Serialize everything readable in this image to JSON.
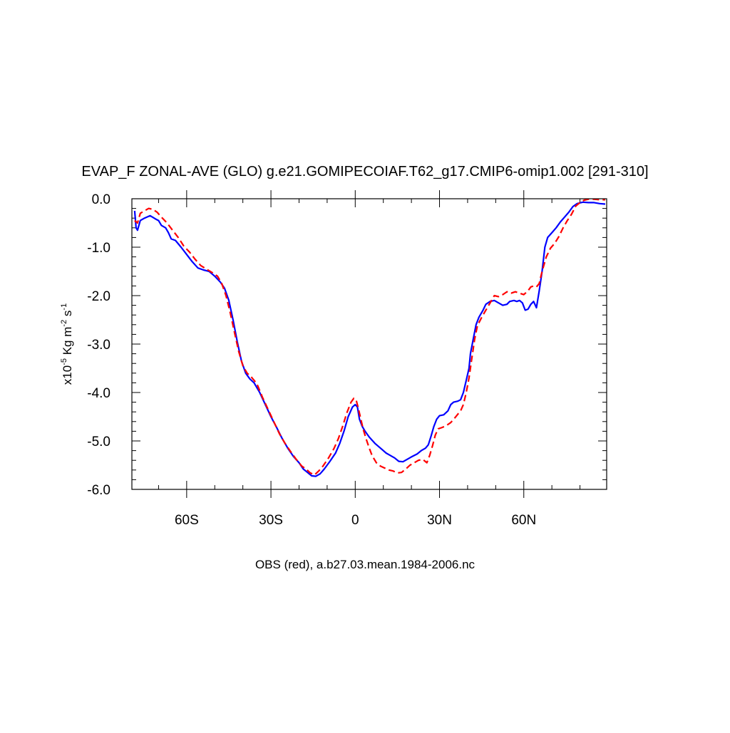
{
  "chart_data": {
    "type": "line",
    "title": "EVAP_F ZONAL-AVE (GLO) g.e21.GOMIPECOIAF.T62_g17.CMIP6-omip1.002 [291-310]",
    "xlabel": "OBS (red), a.b27.03.mean.1984-2006.nc",
    "ylabel": {
      "prefix": "x10",
      "exp1": "-5",
      "unit1": " Kg m",
      "exp2": "-2",
      "unit2": " s",
      "exp3": "-1"
    },
    "xlim": [
      -79.5,
      89.5
    ],
    "ylim": [
      -6.0,
      0.0
    ],
    "x_ticks": [
      {
        "value": -60,
        "label": "60S"
      },
      {
        "value": -30,
        "label": "30S"
      },
      {
        "value": 0,
        "label": "0"
      },
      {
        "value": 30,
        "label": "30N"
      },
      {
        "value": 60,
        "label": "60N"
      }
    ],
    "y_ticks": [
      {
        "value": 0.0,
        "label": "0.0"
      },
      {
        "value": -1.0,
        "label": "-1.0"
      },
      {
        "value": -2.0,
        "label": "-2.0"
      },
      {
        "value": -3.0,
        "label": "-3.0"
      },
      {
        "value": -4.0,
        "label": "-4.0"
      },
      {
        "value": -5.0,
        "label": "-5.0"
      },
      {
        "value": -6.0,
        "label": "-6.0"
      }
    ],
    "grid": false,
    "series": [
      {
        "color": "#0000ff",
        "dash": "solid",
        "points": [
          [
            -78.5,
            -0.25
          ],
          [
            -78.0,
            -0.6
          ],
          [
            -77.5,
            -0.65
          ],
          [
            -76.5,
            -0.45
          ],
          [
            -75.0,
            -0.4
          ],
          [
            -73.0,
            -0.35
          ],
          [
            -71.0,
            -0.42
          ],
          [
            -70.0,
            -0.45
          ],
          [
            -69.0,
            -0.55
          ],
          [
            -67.5,
            -0.6
          ],
          [
            -66.5,
            -0.7
          ],
          [
            -65.5,
            -0.83
          ],
          [
            -64.0,
            -0.86
          ],
          [
            -62.0,
            -1.0
          ],
          [
            -60.0,
            -1.15
          ],
          [
            -58.0,
            -1.3
          ],
          [
            -56.0,
            -1.43
          ],
          [
            -54.0,
            -1.47
          ],
          [
            -52.0,
            -1.5
          ],
          [
            -50.0,
            -1.6
          ],
          [
            -48.0,
            -1.72
          ],
          [
            -46.5,
            -1.85
          ],
          [
            -45.0,
            -2.1
          ],
          [
            -43.5,
            -2.5
          ],
          [
            -42.0,
            -2.95
          ],
          [
            -40.5,
            -3.35
          ],
          [
            -39.0,
            -3.6
          ],
          [
            -37.5,
            -3.72
          ],
          [
            -36.0,
            -3.8
          ],
          [
            -34.0,
            -4.0
          ],
          [
            -32.0,
            -4.25
          ],
          [
            -30.0,
            -4.5
          ],
          [
            -28.0,
            -4.72
          ],
          [
            -26.0,
            -4.95
          ],
          [
            -24.0,
            -5.15
          ],
          [
            -22.0,
            -5.32
          ],
          [
            -20.0,
            -5.45
          ],
          [
            -18.5,
            -5.58
          ],
          [
            -17.0,
            -5.65
          ],
          [
            -15.5,
            -5.72
          ],
          [
            -14.0,
            -5.73
          ],
          [
            -12.5,
            -5.68
          ],
          [
            -11.0,
            -5.58
          ],
          [
            -9.0,
            -5.42
          ],
          [
            -7.0,
            -5.25
          ],
          [
            -5.5,
            -5.05
          ],
          [
            -4.0,
            -4.8
          ],
          [
            -2.5,
            -4.5
          ],
          [
            -1.0,
            -4.3
          ],
          [
            0.0,
            -4.25
          ],
          [
            0.8,
            -4.3
          ],
          [
            1.5,
            -4.55
          ],
          [
            2.5,
            -4.7
          ],
          [
            3.5,
            -4.8
          ],
          [
            5.0,
            -4.92
          ],
          [
            7.0,
            -5.05
          ],
          [
            9.0,
            -5.15
          ],
          [
            11.0,
            -5.25
          ],
          [
            12.5,
            -5.3
          ],
          [
            14.0,
            -5.35
          ],
          [
            15.5,
            -5.42
          ],
          [
            17.0,
            -5.43
          ],
          [
            18.5,
            -5.38
          ],
          [
            20.0,
            -5.33
          ],
          [
            22.0,
            -5.27
          ],
          [
            23.5,
            -5.2
          ],
          [
            25.0,
            -5.15
          ],
          [
            26.0,
            -5.08
          ],
          [
            27.0,
            -4.9
          ],
          [
            28.0,
            -4.7
          ],
          [
            29.0,
            -4.55
          ],
          [
            30.0,
            -4.48
          ],
          [
            31.5,
            -4.46
          ],
          [
            33.0,
            -4.38
          ],
          [
            34.0,
            -4.25
          ],
          [
            35.0,
            -4.2
          ],
          [
            36.5,
            -4.18
          ],
          [
            37.5,
            -4.15
          ],
          [
            38.5,
            -4.0
          ],
          [
            39.5,
            -3.75
          ],
          [
            40.5,
            -3.5
          ],
          [
            41.0,
            -3.2
          ],
          [
            42.0,
            -2.9
          ],
          [
            43.0,
            -2.6
          ],
          [
            44.0,
            -2.45
          ],
          [
            45.5,
            -2.3
          ],
          [
            46.5,
            -2.18
          ],
          [
            48.0,
            -2.12
          ],
          [
            49.5,
            -2.1
          ],
          [
            51.0,
            -2.15
          ],
          [
            52.5,
            -2.2
          ],
          [
            54.0,
            -2.18
          ],
          [
            55.0,
            -2.12
          ],
          [
            56.5,
            -2.1
          ],
          [
            57.5,
            -2.12
          ],
          [
            58.5,
            -2.1
          ],
          [
            59.5,
            -2.15
          ],
          [
            60.5,
            -2.3
          ],
          [
            61.5,
            -2.28
          ],
          [
            62.5,
            -2.18
          ],
          [
            63.5,
            -2.12
          ],
          [
            64.5,
            -2.25
          ],
          [
            65.5,
            -1.9
          ],
          [
            66.5,
            -1.5
          ],
          [
            67.5,
            -1.0
          ],
          [
            68.5,
            -0.8
          ],
          [
            70.0,
            -0.7
          ],
          [
            71.5,
            -0.6
          ],
          [
            73.0,
            -0.48
          ],
          [
            74.5,
            -0.38
          ],
          [
            76.0,
            -0.28
          ],
          [
            77.5,
            -0.16
          ],
          [
            79.0,
            -0.1
          ],
          [
            81.0,
            -0.07
          ],
          [
            83.0,
            -0.08
          ],
          [
            85.0,
            -0.08
          ],
          [
            87.0,
            -0.1
          ],
          [
            89.0,
            -0.11
          ]
        ]
      },
      {
        "color": "#ff0000",
        "dash": "dashed",
        "points": [
          [
            -78.5,
            -0.45
          ],
          [
            -77.5,
            -0.5
          ],
          [
            -76.5,
            -0.3
          ],
          [
            -75.0,
            -0.25
          ],
          [
            -73.5,
            -0.2
          ],
          [
            -72.0,
            -0.22
          ],
          [
            -70.5,
            -0.28
          ],
          [
            -69.0,
            -0.38
          ],
          [
            -67.0,
            -0.5
          ],
          [
            -65.0,
            -0.65
          ],
          [
            -63.0,
            -0.8
          ],
          [
            -61.0,
            -0.98
          ],
          [
            -59.0,
            -1.1
          ],
          [
            -57.0,
            -1.25
          ],
          [
            -55.0,
            -1.38
          ],
          [
            -53.0,
            -1.45
          ],
          [
            -51.0,
            -1.52
          ],
          [
            -49.0,
            -1.6
          ],
          [
            -47.5,
            -1.75
          ],
          [
            -46.0,
            -2.0
          ],
          [
            -44.5,
            -2.35
          ],
          [
            -43.0,
            -2.75
          ],
          [
            -41.5,
            -3.15
          ],
          [
            -40.0,
            -3.45
          ],
          [
            -38.5,
            -3.6
          ],
          [
            -37.0,
            -3.68
          ],
          [
            -35.0,
            -3.82
          ],
          [
            -33.0,
            -4.1
          ],
          [
            -31.0,
            -4.35
          ],
          [
            -29.0,
            -4.6
          ],
          [
            -27.0,
            -4.85
          ],
          [
            -25.0,
            -5.05
          ],
          [
            -23.0,
            -5.22
          ],
          [
            -21.0,
            -5.38
          ],
          [
            -19.0,
            -5.52
          ],
          [
            -17.5,
            -5.58
          ],
          [
            -16.0,
            -5.66
          ],
          [
            -14.5,
            -5.7
          ],
          [
            -13.0,
            -5.62
          ],
          [
            -11.5,
            -5.52
          ],
          [
            -9.5,
            -5.35
          ],
          [
            -7.5,
            -5.15
          ],
          [
            -6.0,
            -4.95
          ],
          [
            -4.5,
            -4.7
          ],
          [
            -3.0,
            -4.42
          ],
          [
            -1.5,
            -4.2
          ],
          [
            -0.5,
            -4.12
          ],
          [
            0.3,
            -4.15
          ],
          [
            1.0,
            -4.3
          ],
          [
            1.8,
            -4.5
          ],
          [
            2.8,
            -4.75
          ],
          [
            4.0,
            -4.98
          ],
          [
            5.0,
            -5.15
          ],
          [
            6.0,
            -5.3
          ],
          [
            7.5,
            -5.45
          ],
          [
            9.0,
            -5.52
          ],
          [
            10.5,
            -5.56
          ],
          [
            12.0,
            -5.6
          ],
          [
            13.5,
            -5.62
          ],
          [
            15.0,
            -5.66
          ],
          [
            16.5,
            -5.65
          ],
          [
            18.0,
            -5.58
          ],
          [
            19.5,
            -5.5
          ],
          [
            21.0,
            -5.45
          ],
          [
            22.5,
            -5.4
          ],
          [
            24.0,
            -5.38
          ],
          [
            25.5,
            -5.45
          ],
          [
            26.5,
            -5.3
          ],
          [
            27.5,
            -5.1
          ],
          [
            28.5,
            -4.88
          ],
          [
            29.5,
            -4.75
          ],
          [
            31.0,
            -4.72
          ],
          [
            32.5,
            -4.68
          ],
          [
            34.0,
            -4.62
          ],
          [
            35.5,
            -4.52
          ],
          [
            36.5,
            -4.45
          ],
          [
            37.5,
            -4.38
          ],
          [
            38.5,
            -4.25
          ],
          [
            39.5,
            -4.0
          ],
          [
            40.5,
            -3.7
          ],
          [
            41.5,
            -3.3
          ],
          [
            42.5,
            -2.9
          ],
          [
            43.5,
            -2.62
          ],
          [
            45.0,
            -2.45
          ],
          [
            46.5,
            -2.3
          ],
          [
            48.0,
            -2.15
          ],
          [
            49.5,
            -2.0
          ],
          [
            51.0,
            -2.02
          ],
          [
            52.5,
            -1.98
          ],
          [
            54.0,
            -1.92
          ],
          [
            55.5,
            -1.95
          ],
          [
            57.0,
            -1.92
          ],
          [
            58.5,
            -1.95
          ],
          [
            60.0,
            -1.98
          ],
          [
            61.5,
            -1.9
          ],
          [
            62.5,
            -1.82
          ],
          [
            63.5,
            -1.8
          ],
          [
            64.5,
            -1.82
          ],
          [
            65.5,
            -1.75
          ],
          [
            66.5,
            -1.5
          ],
          [
            68.0,
            -1.2
          ],
          [
            69.5,
            -1.02
          ],
          [
            71.0,
            -0.92
          ],
          [
            72.5,
            -0.78
          ],
          [
            74.0,
            -0.6
          ],
          [
            75.5,
            -0.45
          ],
          [
            77.0,
            -0.32
          ],
          [
            78.5,
            -0.15
          ],
          [
            80.0,
            -0.08
          ],
          [
            81.5,
            -0.03
          ],
          [
            83.0,
            -0.01
          ],
          [
            85.0,
            -0.01
          ],
          [
            87.0,
            -0.02
          ],
          [
            89.0,
            -0.02
          ]
        ]
      }
    ]
  }
}
